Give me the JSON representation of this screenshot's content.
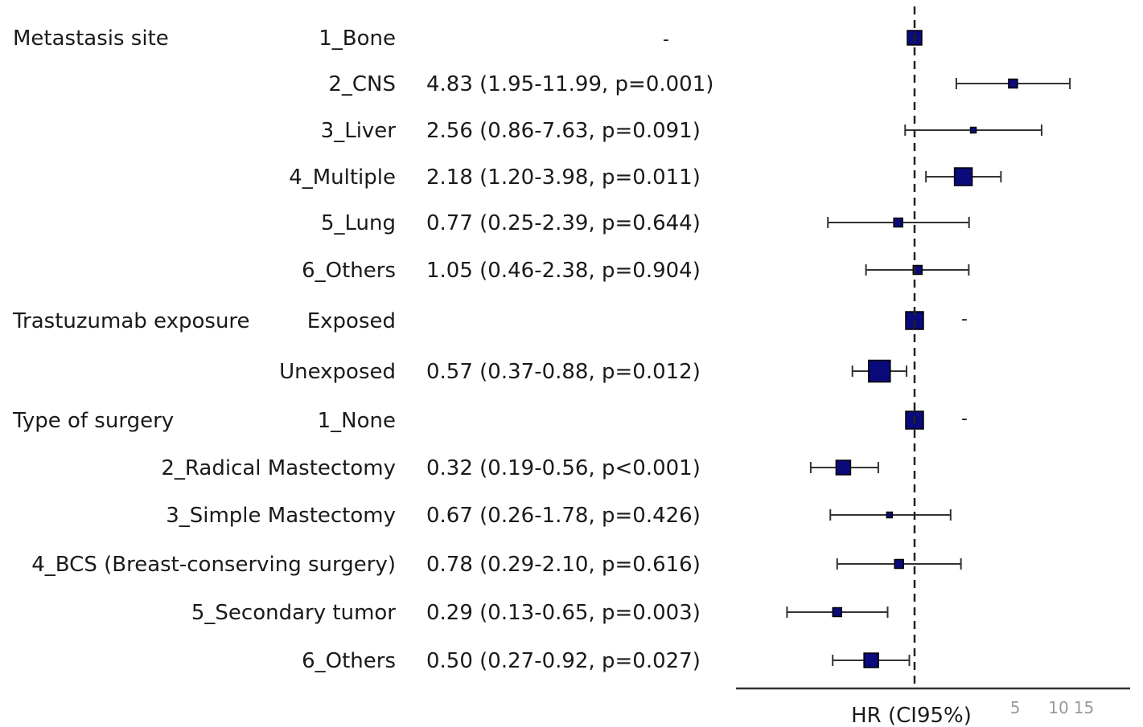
{
  "chart_data": {
    "type": "forest",
    "xlabel": "HR (CI95%)",
    "x_scale": "log",
    "reference_value": 1,
    "x_ticks": [
      {
        "value": 5,
        "label": "5"
      },
      {
        "value": 10,
        "label": "10"
      },
      {
        "value": 15,
        "label": "15"
      }
    ],
    "rows": [
      {
        "variable": "Metastasis site",
        "level": "1_Bone",
        "hr": 1,
        "lower": null,
        "upper": null,
        "estimate_text": "-",
        "reference": true,
        "marker": "medium"
      },
      {
        "variable": "",
        "level": "2_CNS",
        "hr": 4.83,
        "lower": 1.95,
        "upper": 11.99,
        "estimate_text": "4.83 (1.95-11.99, p=0.001)",
        "reference": false,
        "marker": "small"
      },
      {
        "variable": "",
        "level": "3_Liver",
        "hr": 2.56,
        "lower": 0.86,
        "upper": 7.63,
        "estimate_text": "2.56 (0.86-7.63, p=0.091)",
        "reference": false,
        "marker": "tiny"
      },
      {
        "variable": "",
        "level": "4_Multiple",
        "hr": 2.18,
        "lower": 1.2,
        "upper": 3.98,
        "estimate_text": "2.18 (1.20-3.98, p=0.011)",
        "reference": false,
        "marker": "large"
      },
      {
        "variable": "",
        "level": "5_Lung",
        "hr": 0.77,
        "lower": 0.25,
        "upper": 2.39,
        "estimate_text": "0.77 (0.25-2.39, p=0.644)",
        "reference": false,
        "marker": "small"
      },
      {
        "variable": "",
        "level": "6_Others",
        "hr": 1.05,
        "lower": 0.46,
        "upper": 2.38,
        "estimate_text": "1.05 (0.46-2.38, p=0.904)",
        "reference": false,
        "marker": "small"
      },
      {
        "variable": "Trastuzumab exposure",
        "level": "Exposed",
        "hr": 1,
        "lower": null,
        "upper": null,
        "estimate_text": "",
        "reference": true,
        "marker": "large"
      },
      {
        "variable": "",
        "level": "Unexposed",
        "hr": 0.57,
        "lower": 0.37,
        "upper": 0.88,
        "estimate_text": "0.57 (0.37-0.88, p=0.012)",
        "reference": false,
        "marker": "xlarge"
      },
      {
        "variable": "Type of surgery",
        "level": "1_None",
        "hr": 1,
        "lower": null,
        "upper": null,
        "estimate_text": "",
        "reference": true,
        "marker": "large"
      },
      {
        "variable": "",
        "level": "2_Radical Mastectomy",
        "hr": 0.32,
        "lower": 0.19,
        "upper": 0.56,
        "estimate_text": "0.32 (0.19-0.56, p<0.001)",
        "reference": false,
        "marker": "medium"
      },
      {
        "variable": "",
        "level": "3_Simple Mastectomy",
        "hr": 0.67,
        "lower": 0.26,
        "upper": 1.78,
        "estimate_text": "0.67 (0.26-1.78, p=0.426)",
        "reference": false,
        "marker": "tiny"
      },
      {
        "variable": "",
        "level": "4_BCS (Breast-conserving surgery)",
        "hr": 0.78,
        "lower": 0.29,
        "upper": 2.1,
        "estimate_text": "0.78 (0.29-2.10, p=0.616)",
        "reference": false,
        "marker": "small"
      },
      {
        "variable": "",
        "level": "5_Secondary tumor",
        "hr": 0.29,
        "lower": 0.13,
        "upper": 0.65,
        "estimate_text": "0.29 (0.13-0.65, p=0.003)",
        "reference": false,
        "marker": "small"
      },
      {
        "variable": "",
        "level": "6_Others",
        "hr": 0.5,
        "lower": 0.27,
        "upper": 0.92,
        "estimate_text": "0.50 (0.27-0.92, p=0.027)",
        "reference": false,
        "marker": "medium"
      }
    ],
    "reference_marker_text": "-",
    "colors": {
      "marker": "#0a0a7a",
      "marker_outline": "#000000",
      "ci_line": "#333333",
      "reference_line": "#222222",
      "axis": "#333333"
    }
  }
}
